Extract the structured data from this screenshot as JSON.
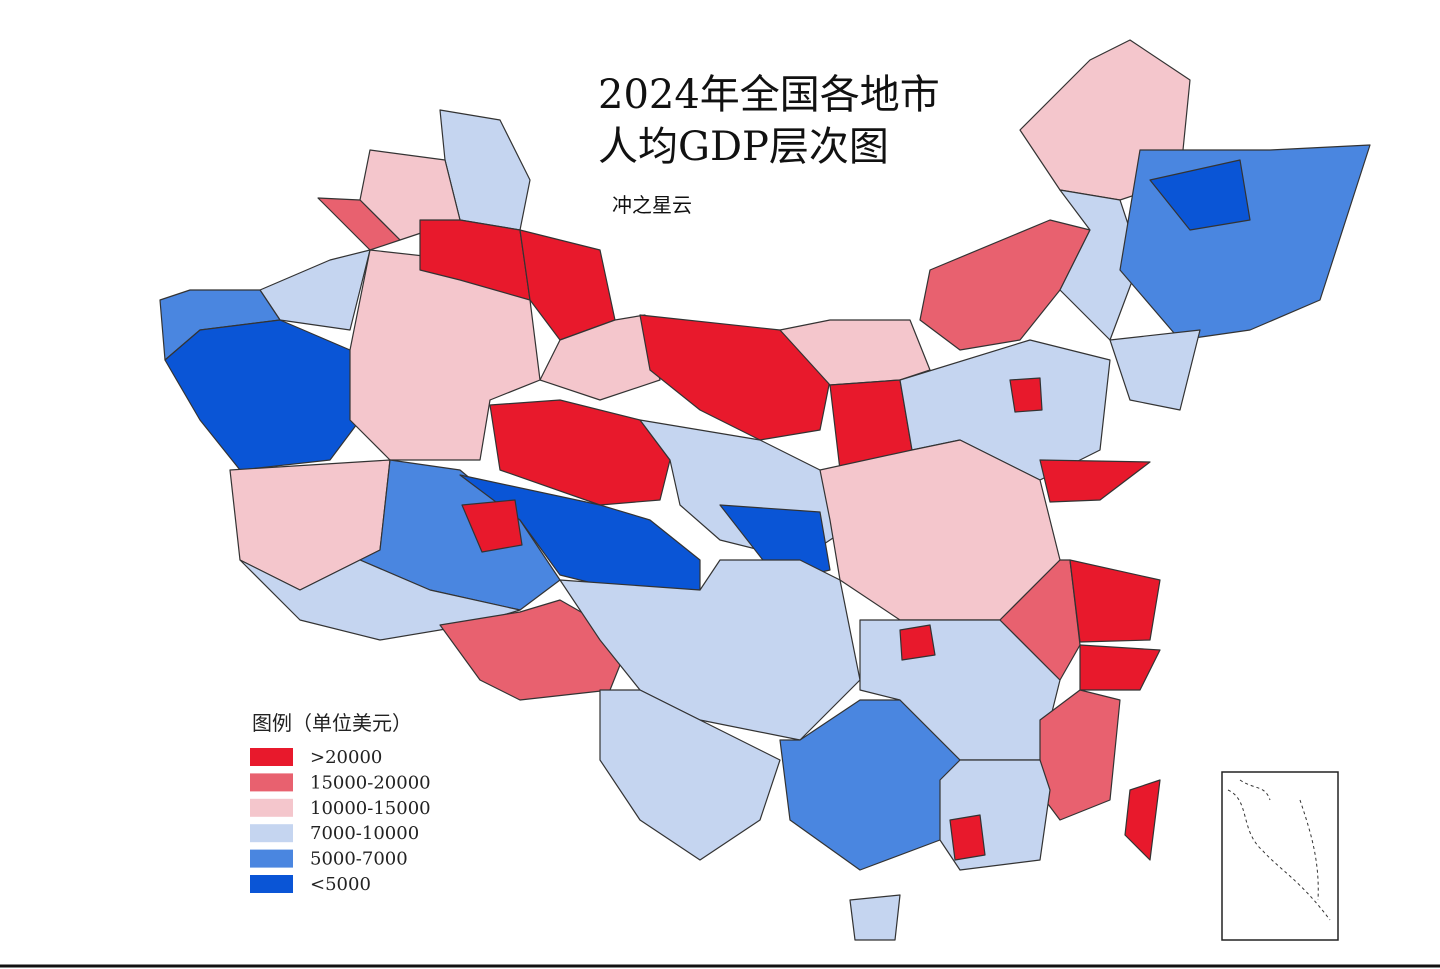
{
  "title": [
    "2024年全国各地市",
    "人均GDP层次图"
  ],
  "author": "冲之星云",
  "legend": {
    "title": "图例（单位美元）",
    "items": [
      {
        "label": ">20000",
        "color": "#e8192c"
      },
      {
        "label": "15000-20000",
        "color": "#e8616f"
      },
      {
        "label": "10000-15000",
        "color": "#f4c6cc"
      },
      {
        "label": "7000-10000",
        "color": "#c5d5f0"
      },
      {
        "label": "5000-7000",
        "color": "#4a86e0"
      },
      {
        "label": "<5000",
        "color": "#0a55d6"
      }
    ]
  }
}
